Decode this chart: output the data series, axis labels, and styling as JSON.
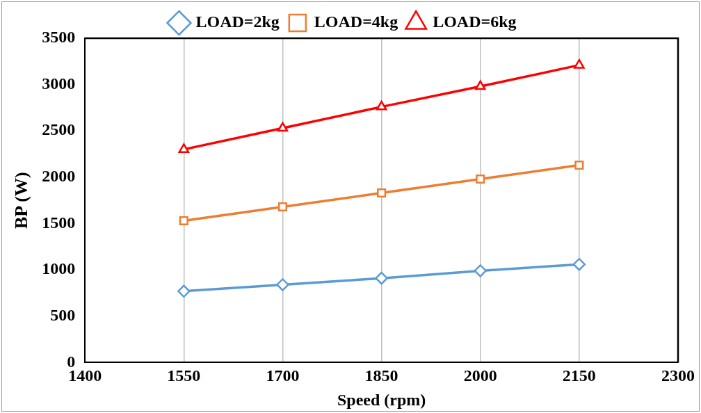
{
  "chart_data": {
    "type": "line",
    "xlabel": "Speed (rpm)",
    "ylabel": "BP (W)",
    "x": [
      1550,
      1700,
      1850,
      2000,
      2150
    ],
    "xlim": [
      1400,
      2300
    ],
    "xticks": [
      1400,
      1550,
      1700,
      1850,
      2000,
      2150,
      2300
    ],
    "ylim": [
      0,
      3500
    ],
    "yticks": [
      0,
      500,
      1000,
      1500,
      2000,
      2500,
      3000,
      3500
    ],
    "grid": "x",
    "legend": "top",
    "series": [
      {
        "name": "LOAD=2kg",
        "color": "#5b9bd5",
        "marker": "diamond",
        "values": [
          770,
          840,
          910,
          990,
          1060
        ]
      },
      {
        "name": "LOAD=4kg",
        "color": "#ed7d31",
        "marker": "square",
        "values": [
          1530,
          1680,
          1830,
          1980,
          2130
        ]
      },
      {
        "name": "LOAD=6kg",
        "color": "#ff0000",
        "marker": "triangle",
        "values": [
          2300,
          2530,
          2760,
          2980,
          3210
        ]
      }
    ]
  }
}
